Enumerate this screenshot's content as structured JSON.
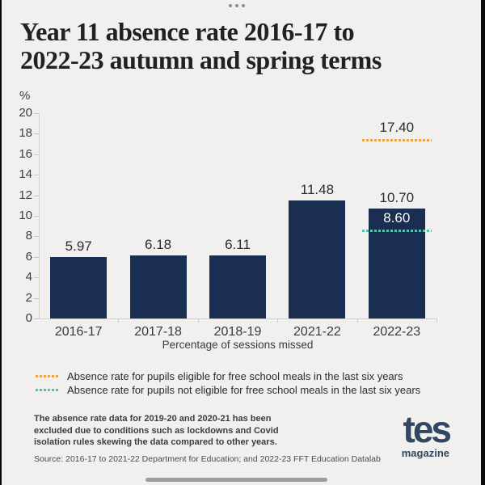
{
  "icons": {
    "ellipsis": "ellipsis-menu"
  },
  "title_lines": {
    "0": "Year 11 absence rate 2016-17 to",
    "1": "2022-23 autumn and spring terms"
  },
  "chart_data": {
    "type": "bar",
    "title": "Year 11 absence rate 2016-17 to 2022-23 autumn and spring terms",
    "unit": "%",
    "categories": [
      "2016-17",
      "2017-18",
      "2018-19",
      "2021-22",
      "2022-23"
    ],
    "values": [
      5.97,
      6.18,
      6.11,
      11.48,
      10.7
    ],
    "bar_labels": [
      "5.97",
      "6.18",
      "6.11",
      "11.48",
      "10.70"
    ],
    "xlabel": "Percentage of sessions missed",
    "ylabel": "%",
    "ylim": [
      0,
      20
    ],
    "ytick_step": 2,
    "grid": false,
    "legend_position": "bottom",
    "bar_color": "#1a2e51",
    "reference_lines": [
      {
        "category": "2022-23",
        "value": 17.4,
        "label": "17.40",
        "label_color": "#2b2b2b",
        "color": "#f0a43c",
        "legend_label": "Absence rate for pupils eligible for free school meals in the last six years"
      },
      {
        "category": "2022-23",
        "value": 8.6,
        "label": "8.60",
        "label_color": "#ffffff",
        "color": "#4cc4ae",
        "legend_label": "Absence rate for pupils not eligible for free school meals in the last six years"
      }
    ]
  },
  "footnote_lines": {
    "0": "The absence rate data for 2019-20 and 2020-21 has been",
    "1": "excluded due to conditions such as lockdowns and Covid",
    "2": "isolation rules skewing the data compared to other years."
  },
  "source": "Source: 2016-17 to 2021-22 Department for Education; and 2022-23 FFT Education Datalab",
  "logo": {
    "name": "tes",
    "tagline": "magazine"
  },
  "colors": {
    "background": "#f1f0ee",
    "bar": "#1a2e51",
    "fsm_line": "#f0a43c",
    "non_fsm_line": "#4cc4ae",
    "axis": "#d3d2ce",
    "logo": "#33465f"
  }
}
